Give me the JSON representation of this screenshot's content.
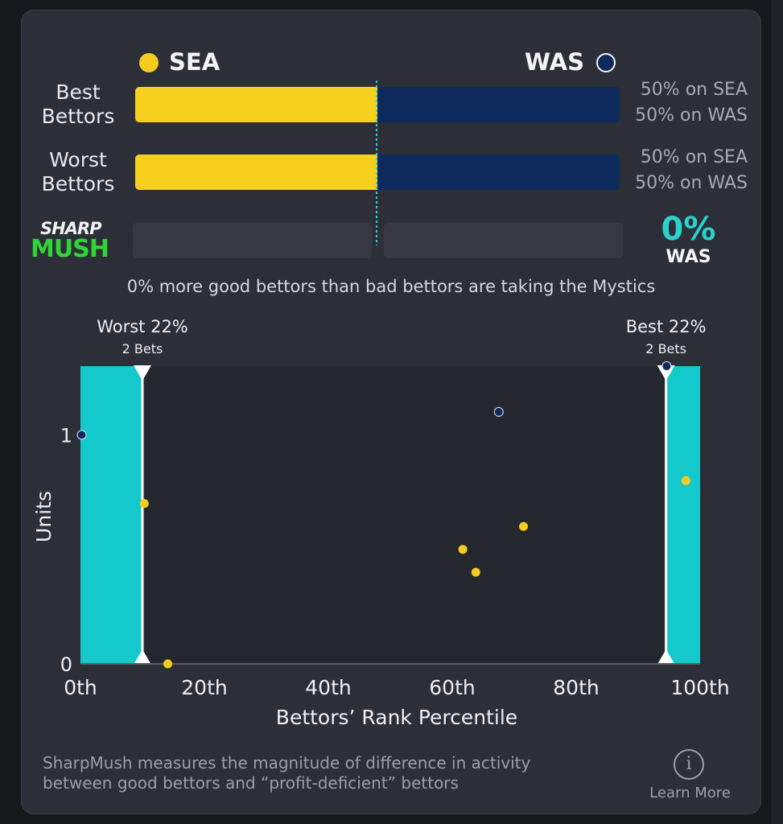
{
  "header": {
    "team_left": "SEA",
    "team_right": "WAS",
    "colors": {
      "sea": "#f6d01d",
      "was": "#0e2a5c",
      "accent": "#2ad2cd",
      "logo_green": "#31d436"
    }
  },
  "rows": [
    {
      "label_line1": "Best",
      "label_line2": "Bettors",
      "sea_pct": 50,
      "was_pct": 50,
      "sea_text": "50% on SEA",
      "was_text": "50% on WAS"
    },
    {
      "label_line1": "Worst",
      "label_line2": "Bettors",
      "sea_pct": 50,
      "was_pct": 50,
      "sea_text": "50% on SEA",
      "was_text": "50% on WAS"
    }
  ],
  "sharpmush": {
    "logo_top": "SHARP",
    "logo_bottom": "MUSH",
    "value_pct": 0,
    "value_text": "0%",
    "team": "WAS",
    "summary": "0% more good bettors than bad bettors are taking the Mystics"
  },
  "chart_data": {
    "type": "scatter",
    "xlabel": "Bettors’ Rank Percentile",
    "ylabel": "Units",
    "xlim": [
      0,
      100
    ],
    "ylim": [
      0,
      1.3
    ],
    "x_ticks": [
      0,
      20,
      40,
      60,
      80,
      100
    ],
    "x_tick_labels": [
      "0th",
      "20th",
      "40th",
      "60th",
      "80th",
      "100th"
    ],
    "y_ticks": [
      0,
      1
    ],
    "y_tick_labels": [
      "0",
      "1"
    ],
    "bands": [
      {
        "title": "Worst 22%",
        "subtitle": "2 Bets",
        "from": 0,
        "to": 10
      },
      {
        "title": "Best 22%",
        "subtitle": "2 Bets",
        "from": 94.5,
        "to": 100
      }
    ],
    "series": [
      {
        "team": "SEA",
        "color": "#f6cd1e",
        "points": [
          [
            10.3,
            0.7
          ],
          [
            14.1,
            0.0
          ],
          [
            61.7,
            0.5
          ],
          [
            63.8,
            0.4
          ],
          [
            71.5,
            0.6
          ],
          [
            97.7,
            0.8
          ]
        ]
      },
      {
        "team": "WAS",
        "color": "#0e2a5c",
        "points": [
          [
            0.2,
            1.0
          ],
          [
            67.5,
            1.1
          ],
          [
            94.6,
            1.3
          ]
        ]
      }
    ]
  },
  "footer": {
    "text_line1": "SharpMush measures the magnitude of difference in activity",
    "text_line2": "between good bettors and “profit-deficient” bettors",
    "info_glyph": "i",
    "learn_more": "Learn More"
  }
}
